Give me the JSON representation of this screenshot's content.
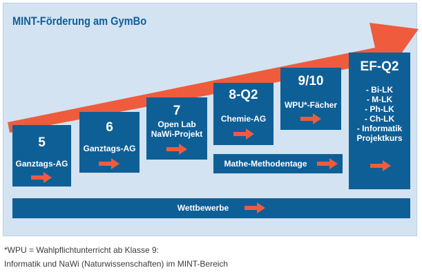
{
  "title": "MINT-Förderung am GymBo",
  "colors": {
    "box": "#0f5f97",
    "panel": "#d3e3f1",
    "arrow": "#ee5c3d",
    "title": "#0d5f9a"
  },
  "icons": [
    "diagonal-arrow-icon",
    "right-arrow-icon"
  ],
  "stages": [
    {
      "number": "5",
      "label": "Ganztags-AG"
    },
    {
      "number": "6",
      "label": "Ganztags-AG"
    },
    {
      "number": "7",
      "lines": [
        "Open Lab",
        "NaWi-Projekt"
      ]
    },
    {
      "number": "8-Q2",
      "label": "Chemie-AG"
    },
    {
      "number": "9/10",
      "label": "WPU*-Fächer"
    },
    {
      "number": "EF-Q2",
      "lines": [
        "- Bi-LK",
        "- M-LK",
        "- Ph-LK",
        "- Ch-LK",
        "- Informatik",
        "Projektkurs"
      ]
    }
  ],
  "mathe": "Mathe-Methodentage",
  "wettbewerbe": "Wettbewerbe",
  "footnote": {
    "line1": "*WPU = Wahlpflichtunterricht ab Klasse 9:",
    "line2": "Informatik und NaWi (Naturwissenschaften) im MINT-Bereich"
  }
}
